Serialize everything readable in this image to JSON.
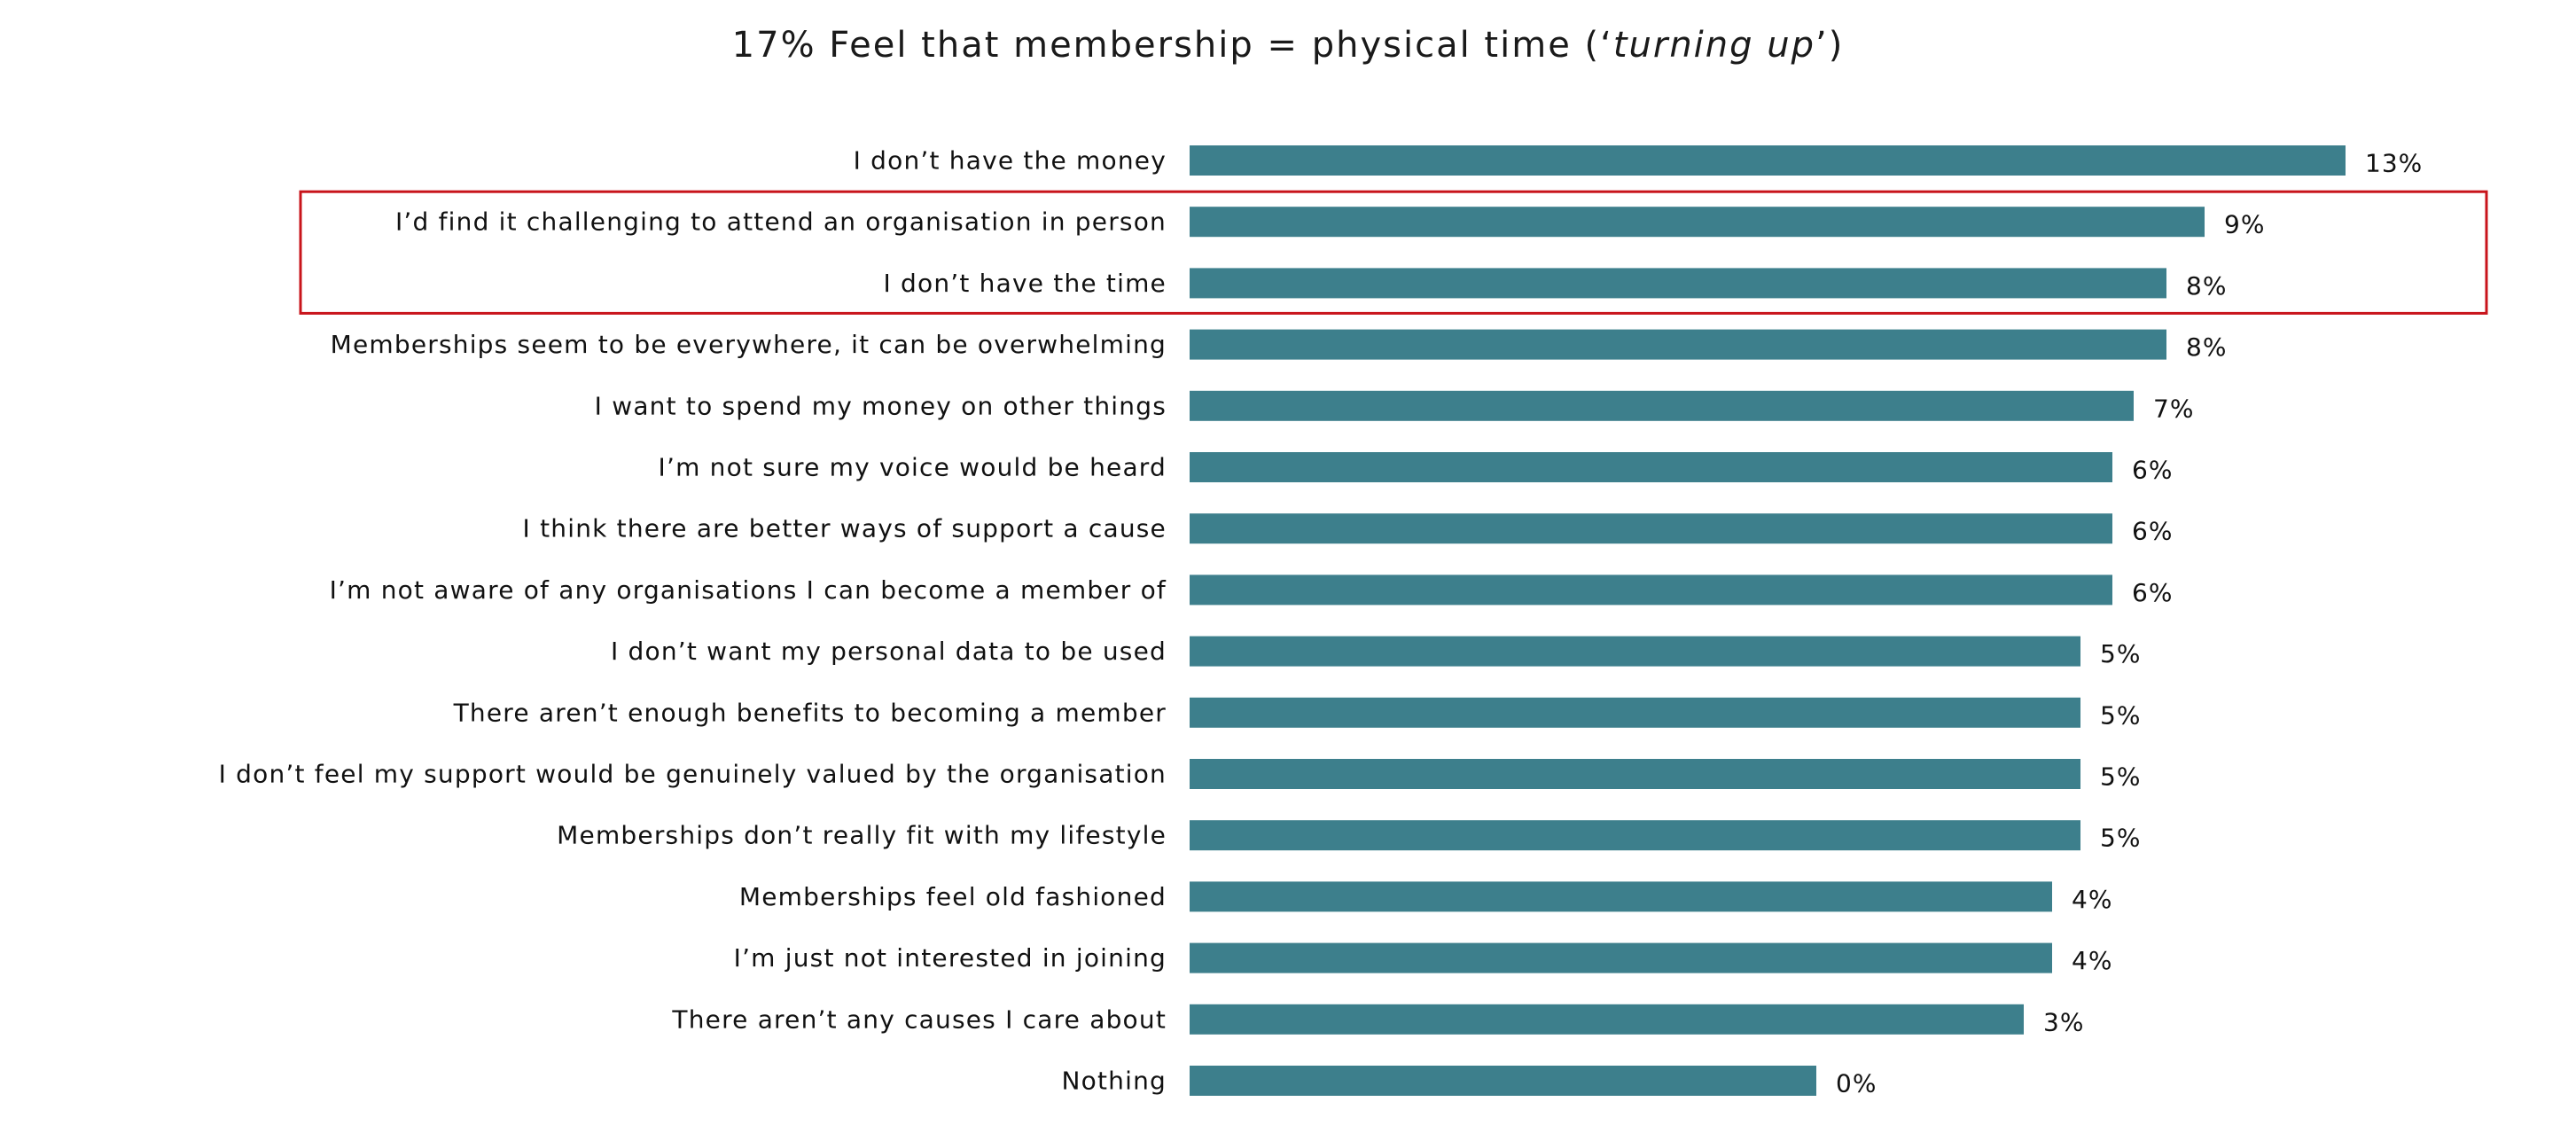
{
  "chart_data": {
    "type": "bar",
    "orientation": "horizontal",
    "title": {
      "prefix": "17% Feel that membership = physical time (‘",
      "emphasis": "turning up",
      "suffix": "’)"
    },
    "categories": [
      "I don’t have the money",
      "I’d find it challenging to attend an organisation in person",
      "I don’t have the time",
      "Memberships seem to be everywhere, it can be overwhelming",
      "I want to spend my money on other things",
      "I’m not sure my voice would be heard",
      "I think there are better ways of support a cause",
      "I’m not aware of any organisations I can become a member of",
      "I don’t want my personal data to be used",
      "There aren’t enough benefits to becoming a member",
      "I don’t feel my support would be genuinely valued by the organisation",
      "Memberships don’t really fit with my lifestyle",
      "Memberships feel old fashioned",
      "I’m just not interested in joining",
      "There aren’t any causes I care about",
      "Nothing"
    ],
    "values": [
      13,
      9,
      8,
      8,
      7,
      6,
      6,
      6,
      5,
      5,
      5,
      5,
      4,
      4,
      3,
      0
    ],
    "value_labels": [
      "13%",
      "9%",
      "8%",
      "8%",
      "7%",
      "6%",
      "6%",
      "6%",
      "5%",
      "5%",
      "5%",
      "5%",
      "4%",
      "4%",
      "3%",
      "0%"
    ],
    "bar_lengths_relative": [
      1.0,
      0.878,
      0.845,
      0.845,
      0.817,
      0.798,
      0.798,
      0.798,
      0.771,
      0.771,
      0.771,
      0.771,
      0.746,
      0.746,
      0.722,
      0.542
    ],
    "highlighted_categories": [
      1,
      2
    ],
    "x_axis_visible": false,
    "grid": false,
    "legend": "none",
    "colors": {
      "bar": "#3d7f8c",
      "highlight_box": "#c8141b",
      "text": "#111111"
    }
  }
}
